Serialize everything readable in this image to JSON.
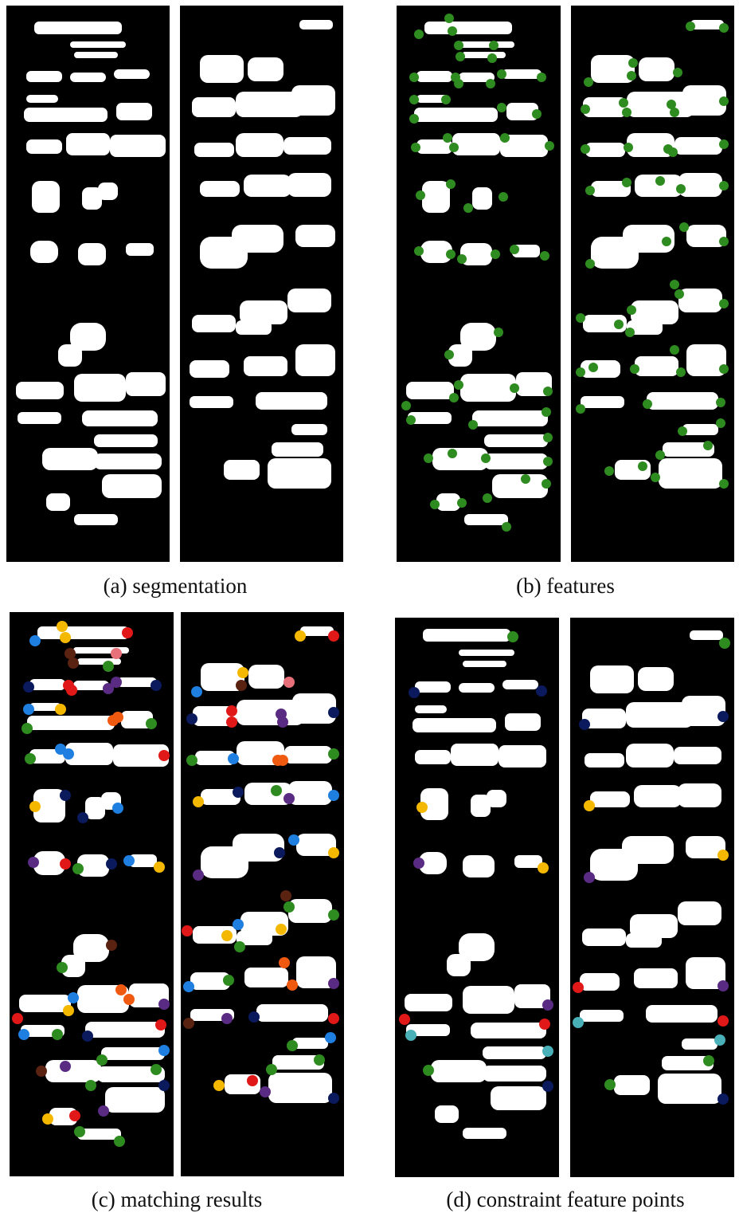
{
  "captions": {
    "a": "(a) segmentation",
    "b": "(b) features",
    "c": "(c) matching results",
    "d": "(d) constraint feature points"
  },
  "colors": {
    "background": "#000000",
    "blob": "#ffffff",
    "feature_point": "#2e8b1f",
    "palette": [
      "#f5b800",
      "#e01818",
      "#1f7fe0",
      "#2e8b1f",
      "#0a1a5c",
      "#5a2b82",
      "#5a2210",
      "#e8707a",
      "#f05a10",
      "#4ab0b8"
    ]
  }
}
